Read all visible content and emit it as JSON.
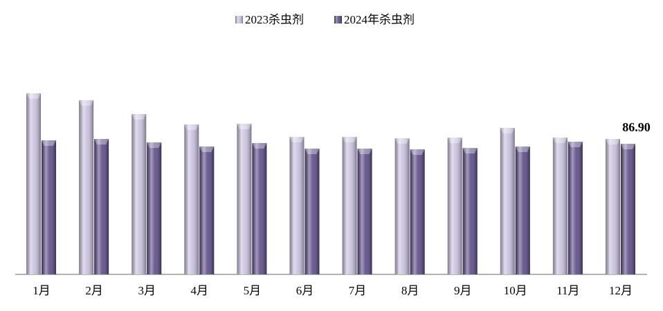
{
  "chart_data": {
    "type": "bar",
    "categories": [
      "1月",
      "2月",
      "3月",
      "4月",
      "5月",
      "6月",
      "7月",
      "8月",
      "9月",
      "10月",
      "11月",
      "12月"
    ],
    "series": [
      {
        "name": "2023杀虫剂",
        "color": "#c9c0de",
        "values": [
          120.5,
          115.9,
          106.7,
          99.8,
          100.2,
          91.5,
          91.5,
          90.6,
          91.0,
          97.5,
          91.0,
          90.1
        ]
      },
      {
        "name": "2024年杀虫剂",
        "color": "#5b4a85",
        "values": [
          89.2,
          90.1,
          87.8,
          85.1,
          87.4,
          83.7,
          83.7,
          83.2,
          84.1,
          85.1,
          88.3,
          86.9
        ],
        "value_labels": [
          null,
          null,
          null,
          null,
          null,
          null,
          null,
          null,
          null,
          null,
          null,
          "86.90"
        ]
      }
    ],
    "legend": "top"
  }
}
